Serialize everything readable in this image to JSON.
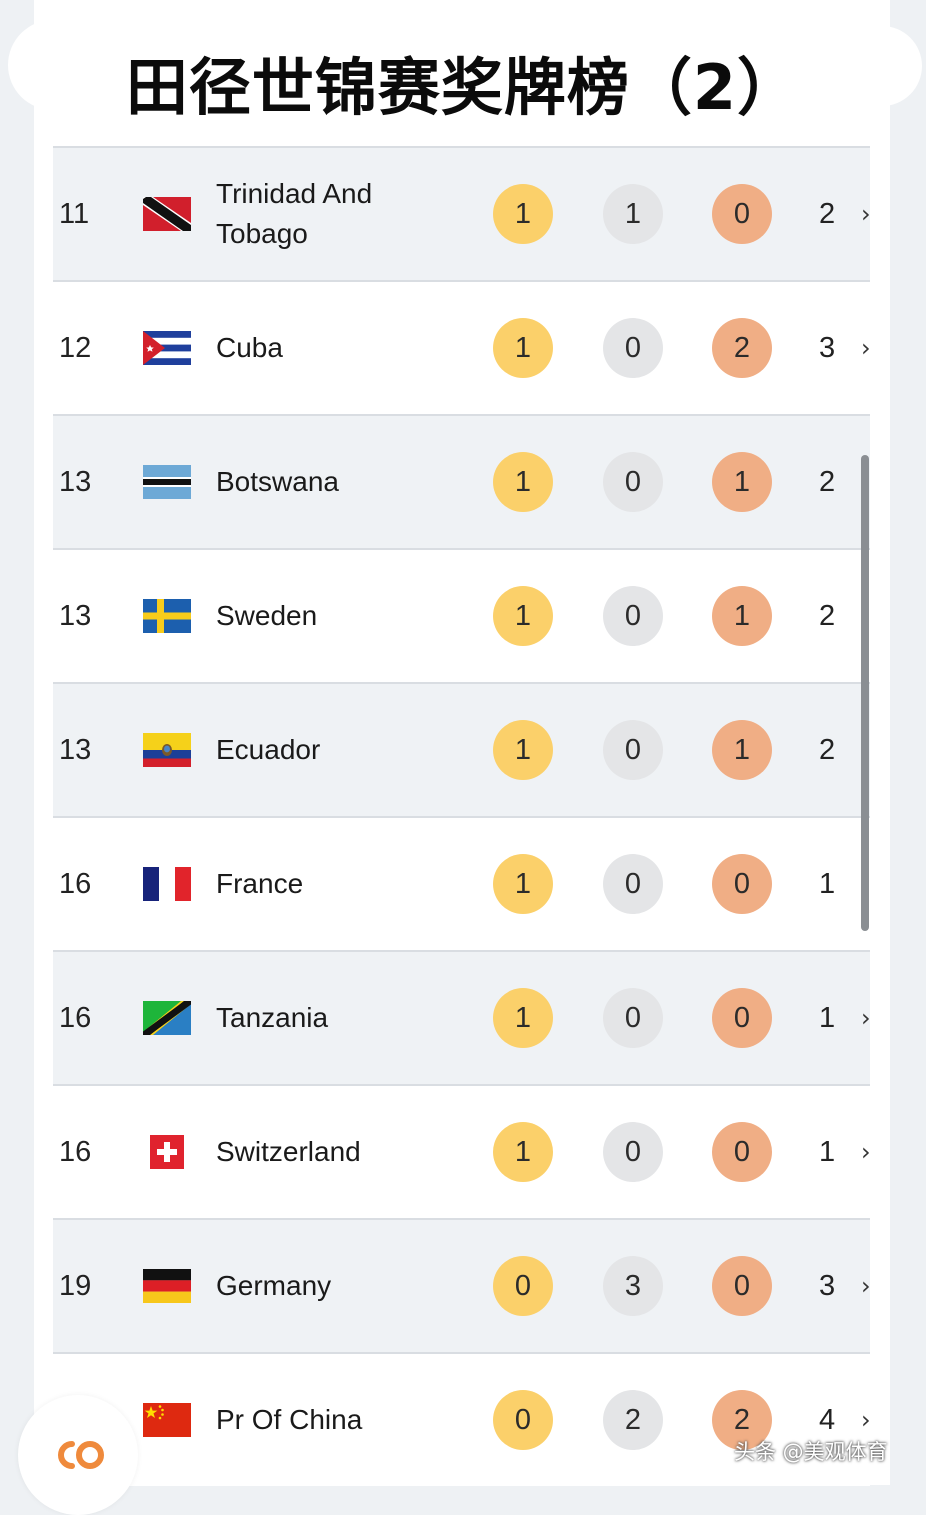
{
  "title": "田径世锦赛奖牌榜（2）",
  "rows": [
    {
      "rank": "11",
      "country_line1": "Trinidad And",
      "country_line2": "Tobago",
      "flag": "trinidad-and-tobago-flag-icon",
      "gold": "1",
      "silver": "1",
      "bronze": "0",
      "total": "2"
    },
    {
      "rank": "12",
      "country_line1": "Cuba",
      "country_line2": "",
      "flag": "cuba-flag-icon",
      "gold": "1",
      "silver": "0",
      "bronze": "2",
      "total": "3"
    },
    {
      "rank": "13",
      "country_line1": "Botswana",
      "country_line2": "",
      "flag": "botswana-flag-icon",
      "gold": "1",
      "silver": "0",
      "bronze": "1",
      "total": "2"
    },
    {
      "rank": "13",
      "country_line1": "Sweden",
      "country_line2": "",
      "flag": "sweden-flag-icon",
      "gold": "1",
      "silver": "0",
      "bronze": "1",
      "total": "2"
    },
    {
      "rank": "13",
      "country_line1": "Ecuador",
      "country_line2": "",
      "flag": "ecuador-flag-icon",
      "gold": "1",
      "silver": "0",
      "bronze": "1",
      "total": "2"
    },
    {
      "rank": "16",
      "country_line1": "France",
      "country_line2": "",
      "flag": "france-flag-icon",
      "gold": "1",
      "silver": "0",
      "bronze": "0",
      "total": "1"
    },
    {
      "rank": "16",
      "country_line1": "Tanzania",
      "country_line2": "",
      "flag": "tanzania-flag-icon",
      "gold": "1",
      "silver": "0",
      "bronze": "0",
      "total": "1"
    },
    {
      "rank": "16",
      "country_line1": "Switzerland",
      "country_line2": "",
      "flag": "switzerland-flag-icon",
      "gold": "1",
      "silver": "0",
      "bronze": "0",
      "total": "1"
    },
    {
      "rank": "19",
      "country_line1": "Germany",
      "country_line2": "",
      "flag": "germany-flag-icon",
      "gold": "0",
      "silver": "3",
      "bronze": "0",
      "total": "3"
    },
    {
      "rank": "",
      "country_line1": "Pr Of China",
      "country_line2": "",
      "flag": "china-flag-icon",
      "gold": "0",
      "silver": "2",
      "bronze": "2",
      "total": "4"
    }
  ],
  "chevron": "›",
  "watermark": "头条 @美观体育",
  "colors": {
    "gold": "#fbd06a",
    "silver": "#e4e5e7",
    "bronze": "#f0ae85",
    "row_shaded": "#eff2f5",
    "logo_orange": "#ef8a3c"
  }
}
